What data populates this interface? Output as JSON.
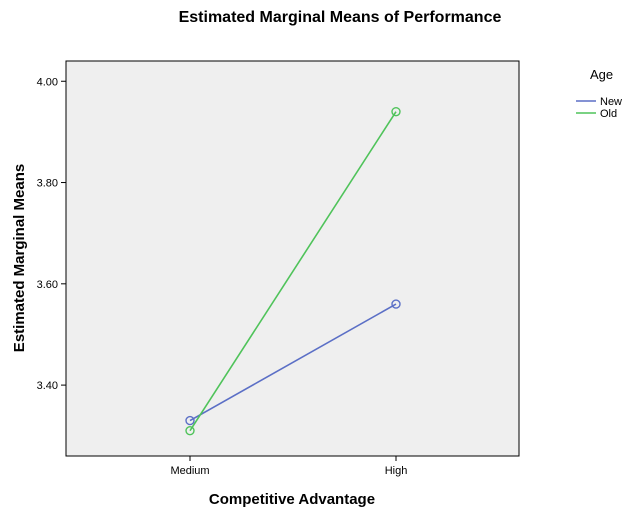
{
  "chart_data": {
    "type": "line",
    "title": "Estimated Marginal Means of Performance",
    "xlabel": "Competitive Advantage",
    "ylabel": "Estimated Marginal Means",
    "categories": [
      "Medium",
      "High"
    ],
    "ylim": [
      3.26,
      4.04
    ],
    "yticks": [
      3.4,
      3.6,
      3.8,
      4.0
    ],
    "ytick_labels": [
      "3.40",
      "3.60",
      "3.80",
      "4.00"
    ],
    "grid": false,
    "legend": {
      "title": "Age",
      "placement": "right-top"
    },
    "series": [
      {
        "name": "New",
        "values": [
          3.33,
          3.56
        ],
        "color": "#5b6fc6",
        "marker": "open-circle"
      },
      {
        "name": "Old",
        "values": [
          3.31,
          3.94
        ],
        "color": "#4fc35a",
        "marker": "open-circle"
      }
    ],
    "plot_background": "#efefef"
  }
}
